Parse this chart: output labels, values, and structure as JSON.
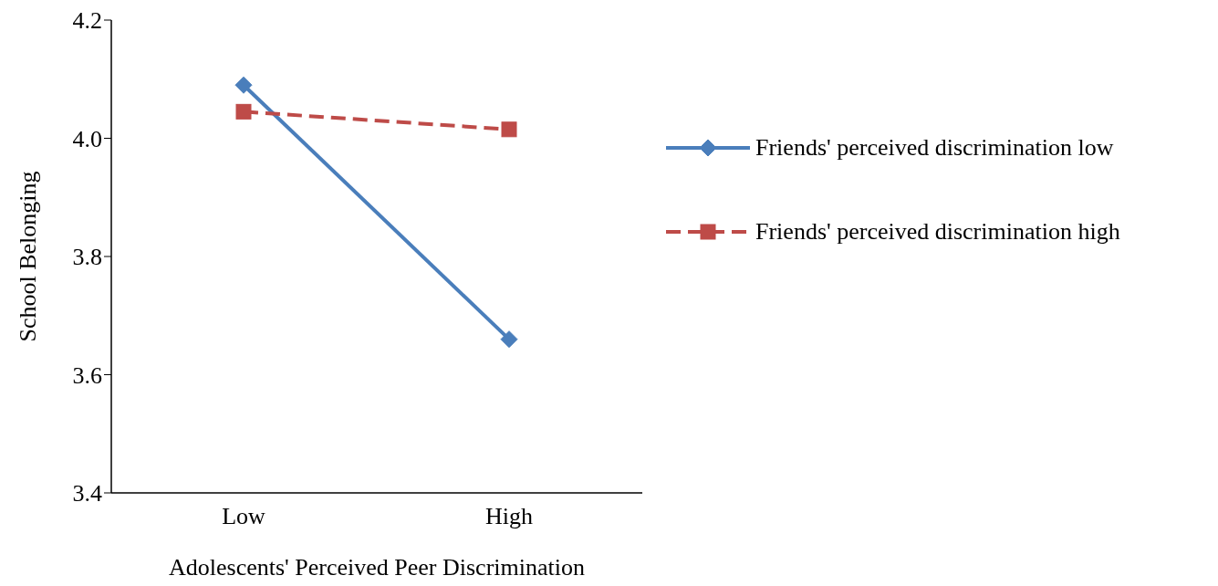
{
  "chart_data": {
    "type": "line",
    "xlabel": "Adolescents' Perceived Peer Discrimination",
    "ylabel": "School Belonging",
    "categories": [
      "Low",
      "High"
    ],
    "series": [
      {
        "name": "Friends' perceived discrimination low",
        "color": "#4a7ebb",
        "values": [
          4.09,
          3.66
        ],
        "marker": "diamond",
        "line_style": "solid"
      },
      {
        "name": "Friends' perceived discrimination high",
        "color": "#be4b48",
        "values": [
          4.045,
          4.015
        ],
        "marker": "square",
        "line_style": "dashed"
      }
    ],
    "ylim": [
      3.4,
      4.2
    ],
    "yticks": [
      {
        "value": 3.4,
        "label": "3.4"
      },
      {
        "value": 3.6,
        "label": "3.6"
      },
      {
        "value": 3.8,
        "label": "3.8"
      },
      {
        "value": 4.0,
        "label": "4.0"
      },
      {
        "value": 4.2,
        "label": "4.2"
      }
    ],
    "grid": false,
    "legend": "right"
  }
}
